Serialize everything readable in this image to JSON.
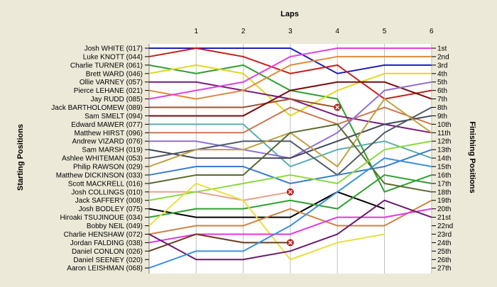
{
  "chart_data": {
    "type": "line",
    "title": "Laps",
    "ylabel_left": "Starting Positions",
    "ylabel_right": "Finishing Positions",
    "laps": [
      0,
      1,
      2,
      3,
      4,
      5,
      6
    ],
    "lap_labels": [
      "1",
      "2",
      "3",
      "4",
      "5",
      "6"
    ],
    "positions": [
      "1st",
      "2nd",
      "3rd",
      "4th",
      "5th",
      "6th",
      "7th",
      "8th",
      "9th",
      "10th",
      "11th",
      "12th",
      "13th",
      "14th",
      "15th",
      "16th",
      "17th",
      "18th",
      "19th",
      "20th",
      "21st",
      "22nd",
      "23rd",
      "24th",
      "25th",
      "26th",
      "27th"
    ],
    "grid": "vertical",
    "series": [
      {
        "name": "Josh WHITE (017)",
        "color": "#1f1fb8",
        "positions": [
          1,
          1,
          1,
          1,
          4,
          3,
          3
        ]
      },
      {
        "name": "Luke KNOTT (044)",
        "color": "#c81e1e",
        "positions": [
          2,
          1,
          2,
          4,
          3,
          7,
          6
        ]
      },
      {
        "name": "Charlie TURNER (061)",
        "color": "#2e9e2e",
        "positions": [
          3,
          4,
          3,
          6,
          7,
          18,
          16
        ]
      },
      {
        "name": "Brett WARD (046)",
        "color": "#e0d820",
        "positions": [
          4,
          3,
          4,
          9,
          6,
          4,
          4
        ]
      },
      {
        "name": "Ollie VARNEY (057)",
        "color": "#7a1a7a",
        "positions": [
          5,
          5,
          6,
          7,
          9,
          10,
          11
        ]
      },
      {
        "name": "Pierce LEHANE (021)",
        "color": "#e08a3a",
        "positions": [
          6,
          7,
          6,
          3,
          2,
          2,
          2
        ]
      },
      {
        "name": "Jay RUDD (085)",
        "color": "#e040e0",
        "positions": [
          7,
          6,
          5,
          2,
          1,
          1,
          1
        ]
      },
      {
        "name": "Jack BARTHOLOMEW (089)",
        "color": "#a0522d",
        "positions": [
          8,
          8,
          8,
          7,
          8
        ],
        "retired": true
      },
      {
        "name": "Sam SMELT (094)",
        "color": "#7a0a0a",
        "positions": [
          9,
          9,
          9,
          6,
          5,
          5,
          7
        ]
      },
      {
        "name": "Edward MAWER (077)",
        "color": "#5aaeae",
        "positions": [
          10,
          10,
          10,
          15,
          13,
          12,
          14
        ]
      },
      {
        "name": "Matthew HIRST (096)",
        "color": "#c87850",
        "positions": [
          11,
          11,
          11,
          8,
          10,
          8,
          10
        ]
      },
      {
        "name": "Andrew VIZARD (076)",
        "color": "#9070d0",
        "positions": [
          12,
          12,
          13,
          14,
          11,
          6,
          5
        ]
      },
      {
        "name": "Sam MARSH (019)",
        "color": "#404858",
        "positions": [
          13,
          14,
          14,
          14,
          12,
          10,
          9
        ]
      },
      {
        "name": "Ashlee WHITEMAN (053)",
        "color": "#505a68",
        "positions": [
          14,
          13,
          12,
          12,
          16,
          11,
          8
        ]
      },
      {
        "name": "Philip RAWSON (029)",
        "color": "#c0a040",
        "positions": [
          15,
          13,
          13,
          11,
          15,
          7,
          11
        ]
      },
      {
        "name": "Matthew DICKINSON (033)",
        "color": "#3a7ad0",
        "positions": [
          16,
          15,
          15,
          17,
          16,
          15,
          13
        ]
      },
      {
        "name": "Scott MACKRELL (016)",
        "color": "#5a6a2a",
        "positions": [
          17,
          16,
          16,
          11,
          10,
          17,
          18
        ]
      },
      {
        "name": "Josh COLLINGS (010)",
        "color": "#e8a090",
        "positions": [
          18,
          18,
          19,
          18
        ],
        "retired": true
      },
      {
        "name": "Jack SAFFERY (008)",
        "color": "#8cd840",
        "positions": [
          19,
          18,
          17,
          16,
          17,
          13,
          12
        ]
      },
      {
        "name": "Josh BODLEY (075)",
        "color": "#000000",
        "positions": [
          20,
          21,
          21,
          21,
          18,
          20
        ]
      },
      {
        "name": "Hiroaki TSUJINOUE (034)",
        "color": "#2ea02e",
        "positions": [
          21,
          20,
          20,
          19,
          20,
          16,
          17
        ]
      },
      {
        "name": "Bobby NEIL (049)",
        "color": "#e8e040",
        "positions": [
          22,
          17,
          19,
          26,
          24,
          23
        ]
      },
      {
        "name": "Charlie HENSHAW (072)",
        "color": "#d08040",
        "positions": [
          23,
          22,
          22,
          20,
          22,
          22,
          19
        ]
      },
      {
        "name": "Jordan FALDING (038)",
        "color": "#e038e0",
        "positions": [
          24,
          23,
          23,
          23,
          21,
          21,
          20
        ]
      },
      {
        "name": "Daniel CONLON (026)",
        "color": "#6e3a1a",
        "positions": [
          25,
          23,
          24,
          24
        ],
        "retired": true
      },
      {
        "name": "Daniel SEENEY (020)",
        "color": "#6a1a6a",
        "positions": [
          23,
          26,
          26,
          25,
          23,
          19,
          21
        ]
      },
      {
        "name": "Aaron LEISHMAN (068)",
        "color": "#3a90e0",
        "positions": [
          27,
          25,
          25,
          22,
          18,
          14,
          15
        ]
      }
    ]
  }
}
